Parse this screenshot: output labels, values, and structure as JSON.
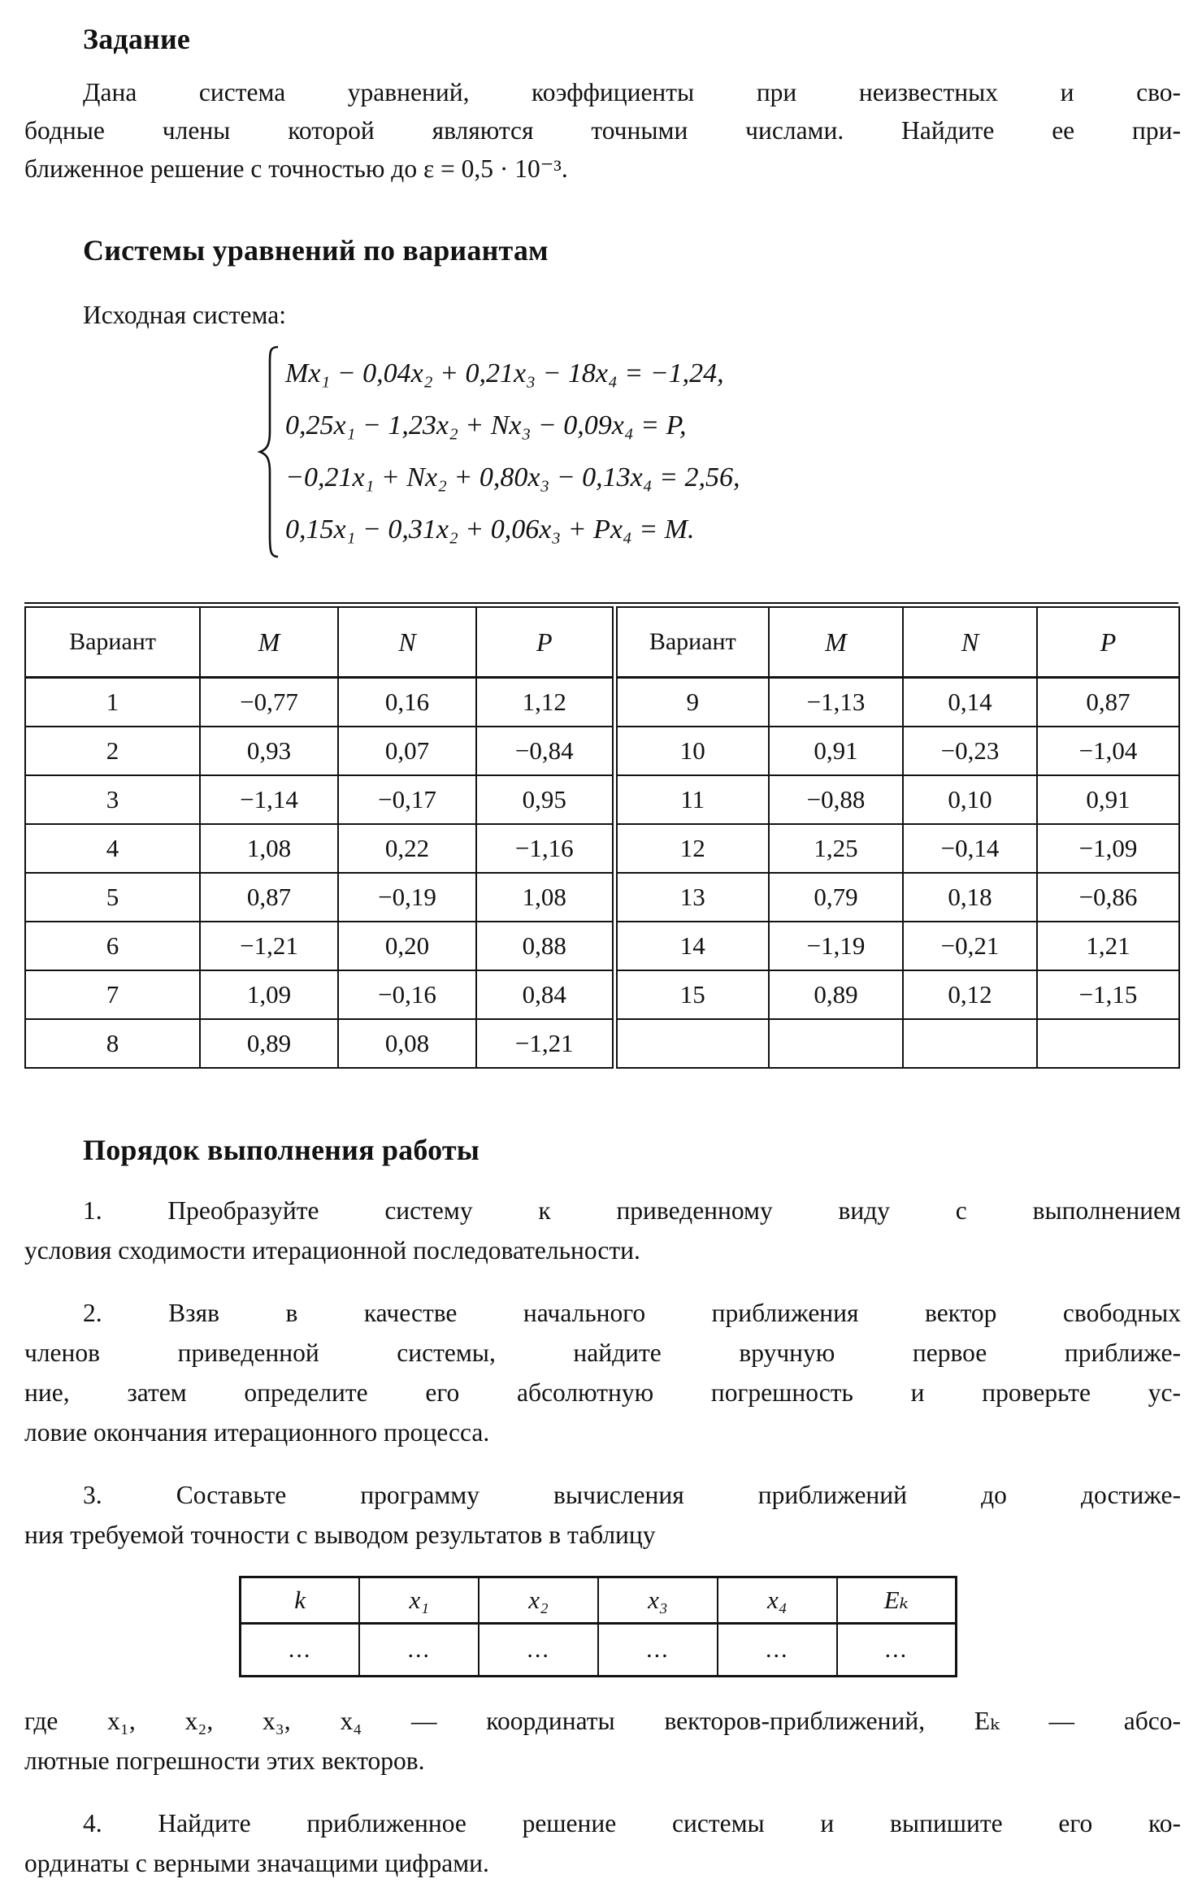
{
  "task": {
    "heading": "Задание",
    "lines": [
      "Дана система уравнений, коэффициенты при неизвестных и сво-",
      "бодные члены которой являются точными числами. Найдите ее при-",
      "ближенное решение с точностью до ε = 0,5 · 10⁻³."
    ]
  },
  "systems": {
    "heading": "Системы уравнений по вариантам",
    "intro": "Исходная система:",
    "equations": [
      "Mx₁ − 0,04x₂ + 0,21x₃ − 18x₄ = −1,24,",
      "0,25x₁ − 1,23x₂ + Nx₃ − 0,09x₄ = P,",
      "−0,21x₁ + Nx₂ + 0,80x₃ − 0,13x₄ = 2,56,",
      "0,15x₁ − 0,31x₂ + 0,06x₃ + Px₄ = M."
    ]
  },
  "variants_table": {
    "headers": [
      "Вариант",
      "M",
      "N",
      "P",
      "Вариант",
      "M",
      "N",
      "P"
    ],
    "rows": [
      [
        "1",
        "−0,77",
        "0,16",
        "1,12",
        "9",
        "−1,13",
        "0,14",
        "0,87"
      ],
      [
        "2",
        "0,93",
        "0,07",
        "−0,84",
        "10",
        "0,91",
        "−0,23",
        "−1,04"
      ],
      [
        "3",
        "−1,14",
        "−0,17",
        "0,95",
        "11",
        "−0,88",
        "0,10",
        "0,91"
      ],
      [
        "4",
        "1,08",
        "0,22",
        "−1,16",
        "12",
        "1,25",
        "−0,14",
        "−1,09"
      ],
      [
        "5",
        "0,87",
        "−0,19",
        "1,08",
        "13",
        "0,79",
        "0,18",
        "−0,86"
      ],
      [
        "6",
        "−1,21",
        "0,20",
        "0,88",
        "14",
        "−1,19",
        "−0,21",
        "1,21"
      ],
      [
        "7",
        "1,09",
        "−0,16",
        "0,84",
        "15",
        "0,89",
        "0,12",
        "−1,15"
      ],
      [
        "8",
        "0,89",
        "0,08",
        "−1,21",
        "",
        "",
        "",
        ""
      ]
    ]
  },
  "procedure": {
    "heading": "Порядок выполнения работы",
    "step1_lines": [
      "1. Преобразуйте систему к приведенному виду с выполнением",
      "условия сходимости итерационной последовательности."
    ],
    "step2_lines": [
      "2. Взяв в качестве начального приближения вектор свободных",
      "членов приведенной системы, найдите вручную первое приближе-",
      "ние, затем определите его абсолютную погрешность и проверьте ус-",
      "ловие окончания итерационного процесса."
    ],
    "step3_lines": [
      "3. Составьте программу вычисления приближений до достиже-",
      "ния требуемой точности с выводом результатов в таблицу"
    ],
    "step4_lines": [
      "4. Найдите приближенное решение системы и выпишите его ко-",
      "ординаты с верными значащими цифрами."
    ]
  },
  "results_table": {
    "headers": [
      "k",
      "x₁",
      "x₂",
      "x₃",
      "x₄",
      "Eₖ"
    ],
    "rows": [
      [
        "...",
        "...",
        "...",
        "...",
        "...",
        "..."
      ]
    ]
  },
  "legend": {
    "lines": [
      "где x₁, x₂, x₃, x₄ — координаты векторов-приближений, Eₖ — абсо-",
      "лютные погрешности этих векторов."
    ]
  }
}
